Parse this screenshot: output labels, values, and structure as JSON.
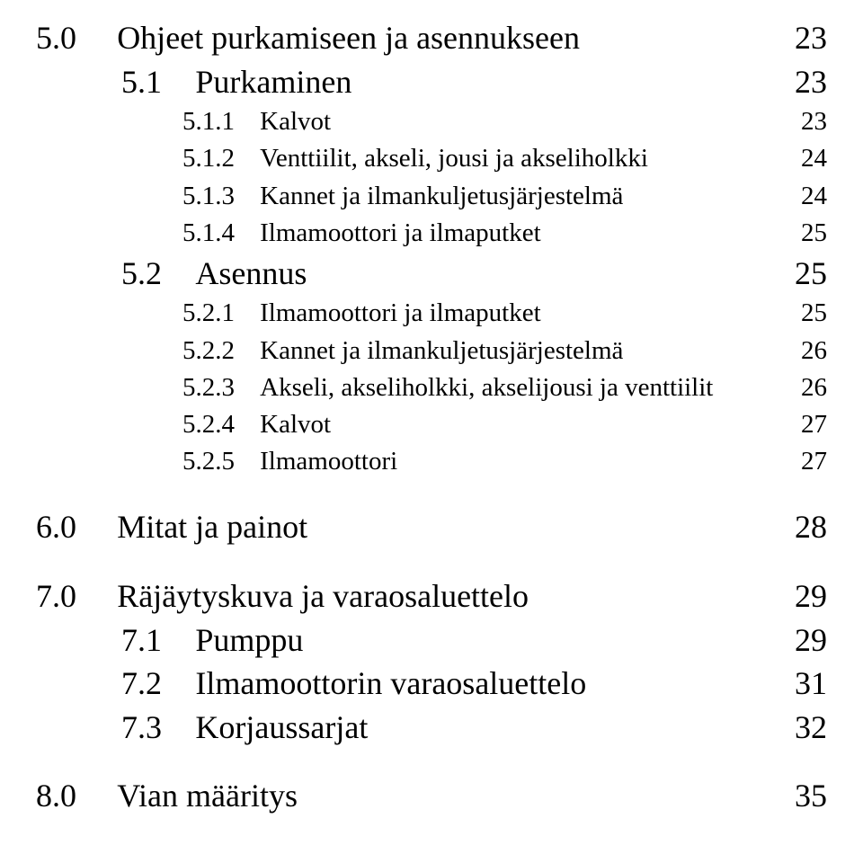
{
  "typography": {
    "font_family": "Times New Roman, serif",
    "text_color": "#000000",
    "background_color": "#ffffff",
    "level1_fontsize_pt": 27,
    "level2_fontsize_pt": 27,
    "level3_fontsize_pt": 22
  },
  "toc": [
    {
      "level": 1,
      "num": "5.0",
      "title": "Ohjeet purkamiseen ja asennukseen",
      "page": "23"
    },
    {
      "level": 2,
      "num": "5.1",
      "title": "Purkaminen",
      "page": "23"
    },
    {
      "level": 3,
      "num": "5.1.1",
      "title": "Kalvot",
      "page": "23"
    },
    {
      "level": 3,
      "num": "5.1.2",
      "title": "Venttiilit, akseli, jousi ja akseliholkki",
      "page": "24"
    },
    {
      "level": 3,
      "num": "5.1.3",
      "title": "Kannet ja ilmankuljetusjärjestelmä",
      "page": "24"
    },
    {
      "level": 3,
      "num": "5.1.4",
      "title": "Ilmamoottori ja ilmaputket",
      "page": "25"
    },
    {
      "level": 2,
      "num": "5.2",
      "title": "Asennus",
      "page": "25"
    },
    {
      "level": 3,
      "num": "5.2.1",
      "title": "Ilmamoottori ja ilmaputket",
      "page": "25"
    },
    {
      "level": 3,
      "num": "5.2.2",
      "title": "Kannet ja ilmankuljetusjärjestelmä",
      "page": "26"
    },
    {
      "level": 3,
      "num": "5.2.3",
      "title": "Akseli, akseliholkki, akselijousi ja venttiilit",
      "page": "26"
    },
    {
      "level": 3,
      "num": "5.2.4",
      "title": "Kalvot",
      "page": "27"
    },
    {
      "level": 3,
      "num": "5.2.5",
      "title": "Ilmamoottori",
      "page": "27"
    },
    {
      "level": 1,
      "num": "6.0",
      "title": "Mitat ja painot",
      "page": "28"
    },
    {
      "level": 1,
      "num": "7.0",
      "title": "Räjäytyskuva ja varaosaluettelo",
      "page": "29"
    },
    {
      "level": 2,
      "num": "7.1",
      "title": "Pumppu",
      "page": "29"
    },
    {
      "level": 2,
      "num": "7.2",
      "title": "Ilmamoottorin varaosaluettelo",
      "page": "31"
    },
    {
      "level": 2,
      "num": "7.3",
      "title": "Korjaussarjat",
      "page": "32"
    },
    {
      "level": 1,
      "num": "8.0",
      "title": "Vian määritys",
      "page": "35"
    }
  ]
}
